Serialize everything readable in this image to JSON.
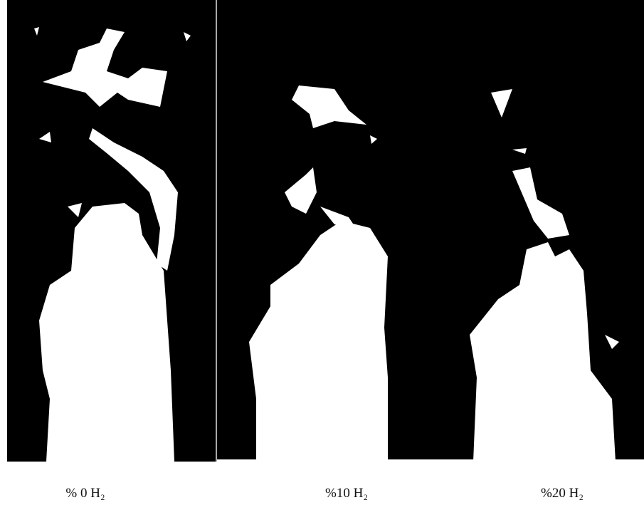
{
  "panels": [
    {
      "caption": "% 0 H₂"
    },
    {
      "caption": "%10 H₂"
    },
    {
      "caption": "%20 H₂"
    }
  ]
}
